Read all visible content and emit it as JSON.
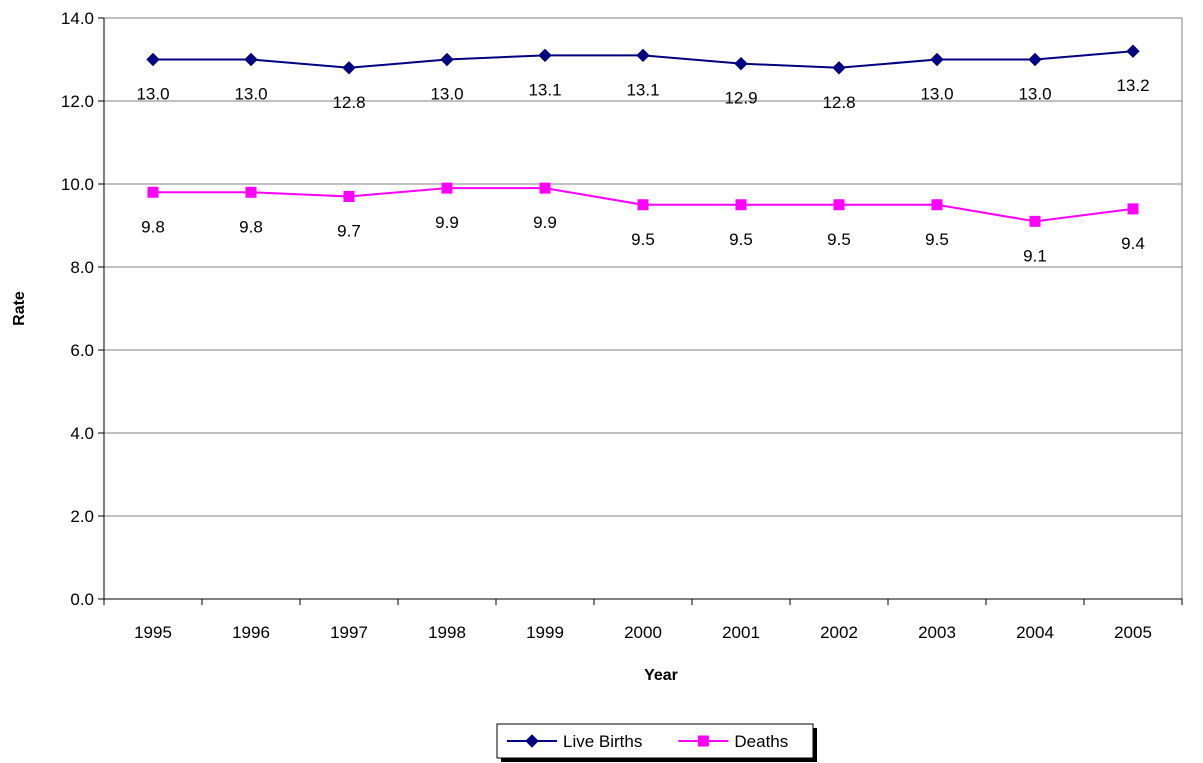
{
  "chart_data": {
    "type": "line",
    "title": "",
    "xlabel": "Year",
    "ylabel": "Rate",
    "categories": [
      "1995",
      "1996",
      "1997",
      "1998",
      "1999",
      "2000",
      "2001",
      "2002",
      "2003",
      "2004",
      "2005"
    ],
    "ylim": [
      0,
      14
    ],
    "yticks": [
      "0.0",
      "2.0",
      "4.0",
      "6.0",
      "8.0",
      "10.0",
      "12.0",
      "14.0"
    ],
    "ytick_values": [
      0,
      2,
      4,
      6,
      8,
      10,
      12,
      14
    ],
    "grid": true,
    "legend_position": "bottom",
    "series": [
      {
        "name": "Live Births",
        "color": "#000080",
        "marker": "diamond",
        "values": [
          13.0,
          13.0,
          12.8,
          13.0,
          13.1,
          13.1,
          12.9,
          12.8,
          13.0,
          13.0,
          13.2
        ],
        "labels": [
          "13.0",
          "13.0",
          "12.8",
          "13.0",
          "13.1",
          "13.1",
          "12.9",
          "12.8",
          "13.0",
          "13.0",
          "13.2"
        ]
      },
      {
        "name": "Deaths",
        "color": "#ff00ff",
        "marker": "square",
        "values": [
          9.8,
          9.8,
          9.7,
          9.9,
          9.9,
          9.5,
          9.5,
          9.5,
          9.5,
          9.1,
          9.4
        ],
        "labels": [
          "9.8",
          "9.8",
          "9.7",
          "9.9",
          "9.9",
          "9.5",
          "9.5",
          "9.5",
          "9.5",
          "9.1",
          "9.4"
        ]
      }
    ]
  }
}
